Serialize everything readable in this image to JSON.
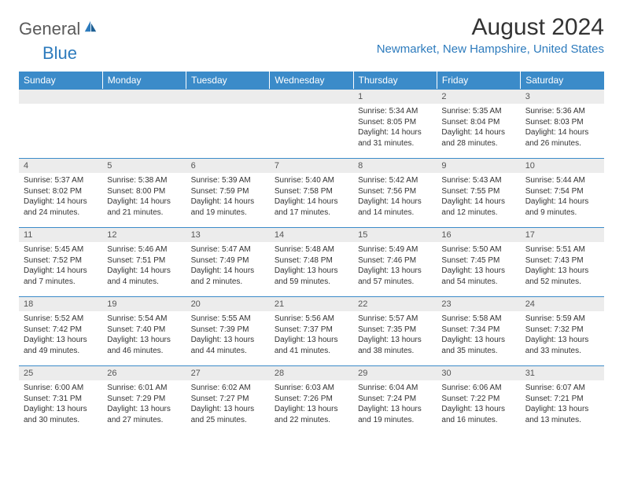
{
  "logo": {
    "general": "General",
    "blue": "Blue"
  },
  "title": "August 2024",
  "location": "Newmarket, New Hampshire, United States",
  "colors": {
    "header_bg": "#3b8bc9",
    "header_text": "#ffffff",
    "daynum_bg": "#ececec",
    "accent": "#2d7bbd",
    "body_text": "#333333",
    "logo_gray": "#5a5a5a"
  },
  "weekdays": [
    "Sunday",
    "Monday",
    "Tuesday",
    "Wednesday",
    "Thursday",
    "Friday",
    "Saturday"
  ],
  "layout": {
    "first_weekday_index": 4,
    "days_in_month": 31
  },
  "days": {
    "1": {
      "sunrise": "5:34 AM",
      "sunset": "8:05 PM",
      "daylight": "14 hours and 31 minutes."
    },
    "2": {
      "sunrise": "5:35 AM",
      "sunset": "8:04 PM",
      "daylight": "14 hours and 28 minutes."
    },
    "3": {
      "sunrise": "5:36 AM",
      "sunset": "8:03 PM",
      "daylight": "14 hours and 26 minutes."
    },
    "4": {
      "sunrise": "5:37 AM",
      "sunset": "8:02 PM",
      "daylight": "14 hours and 24 minutes."
    },
    "5": {
      "sunrise": "5:38 AM",
      "sunset": "8:00 PM",
      "daylight": "14 hours and 21 minutes."
    },
    "6": {
      "sunrise": "5:39 AM",
      "sunset": "7:59 PM",
      "daylight": "14 hours and 19 minutes."
    },
    "7": {
      "sunrise": "5:40 AM",
      "sunset": "7:58 PM",
      "daylight": "14 hours and 17 minutes."
    },
    "8": {
      "sunrise": "5:42 AM",
      "sunset": "7:56 PM",
      "daylight": "14 hours and 14 minutes."
    },
    "9": {
      "sunrise": "5:43 AM",
      "sunset": "7:55 PM",
      "daylight": "14 hours and 12 minutes."
    },
    "10": {
      "sunrise": "5:44 AM",
      "sunset": "7:54 PM",
      "daylight": "14 hours and 9 minutes."
    },
    "11": {
      "sunrise": "5:45 AM",
      "sunset": "7:52 PM",
      "daylight": "14 hours and 7 minutes."
    },
    "12": {
      "sunrise": "5:46 AM",
      "sunset": "7:51 PM",
      "daylight": "14 hours and 4 minutes."
    },
    "13": {
      "sunrise": "5:47 AM",
      "sunset": "7:49 PM",
      "daylight": "14 hours and 2 minutes."
    },
    "14": {
      "sunrise": "5:48 AM",
      "sunset": "7:48 PM",
      "daylight": "13 hours and 59 minutes."
    },
    "15": {
      "sunrise": "5:49 AM",
      "sunset": "7:46 PM",
      "daylight": "13 hours and 57 minutes."
    },
    "16": {
      "sunrise": "5:50 AM",
      "sunset": "7:45 PM",
      "daylight": "13 hours and 54 minutes."
    },
    "17": {
      "sunrise": "5:51 AM",
      "sunset": "7:43 PM",
      "daylight": "13 hours and 52 minutes."
    },
    "18": {
      "sunrise": "5:52 AM",
      "sunset": "7:42 PM",
      "daylight": "13 hours and 49 minutes."
    },
    "19": {
      "sunrise": "5:54 AM",
      "sunset": "7:40 PM",
      "daylight": "13 hours and 46 minutes."
    },
    "20": {
      "sunrise": "5:55 AM",
      "sunset": "7:39 PM",
      "daylight": "13 hours and 44 minutes."
    },
    "21": {
      "sunrise": "5:56 AM",
      "sunset": "7:37 PM",
      "daylight": "13 hours and 41 minutes."
    },
    "22": {
      "sunrise": "5:57 AM",
      "sunset": "7:35 PM",
      "daylight": "13 hours and 38 minutes."
    },
    "23": {
      "sunrise": "5:58 AM",
      "sunset": "7:34 PM",
      "daylight": "13 hours and 35 minutes."
    },
    "24": {
      "sunrise": "5:59 AM",
      "sunset": "7:32 PM",
      "daylight": "13 hours and 33 minutes."
    },
    "25": {
      "sunrise": "6:00 AM",
      "sunset": "7:31 PM",
      "daylight": "13 hours and 30 minutes."
    },
    "26": {
      "sunrise": "6:01 AM",
      "sunset": "7:29 PM",
      "daylight": "13 hours and 27 minutes."
    },
    "27": {
      "sunrise": "6:02 AM",
      "sunset": "7:27 PM",
      "daylight": "13 hours and 25 minutes."
    },
    "28": {
      "sunrise": "6:03 AM",
      "sunset": "7:26 PM",
      "daylight": "13 hours and 22 minutes."
    },
    "29": {
      "sunrise": "6:04 AM",
      "sunset": "7:24 PM",
      "daylight": "13 hours and 19 minutes."
    },
    "30": {
      "sunrise": "6:06 AM",
      "sunset": "7:22 PM",
      "daylight": "13 hours and 16 minutes."
    },
    "31": {
      "sunrise": "6:07 AM",
      "sunset": "7:21 PM",
      "daylight": "13 hours and 13 minutes."
    }
  },
  "labels": {
    "sunrise": "Sunrise: ",
    "sunset": "Sunset: ",
    "daylight": "Daylight: "
  }
}
